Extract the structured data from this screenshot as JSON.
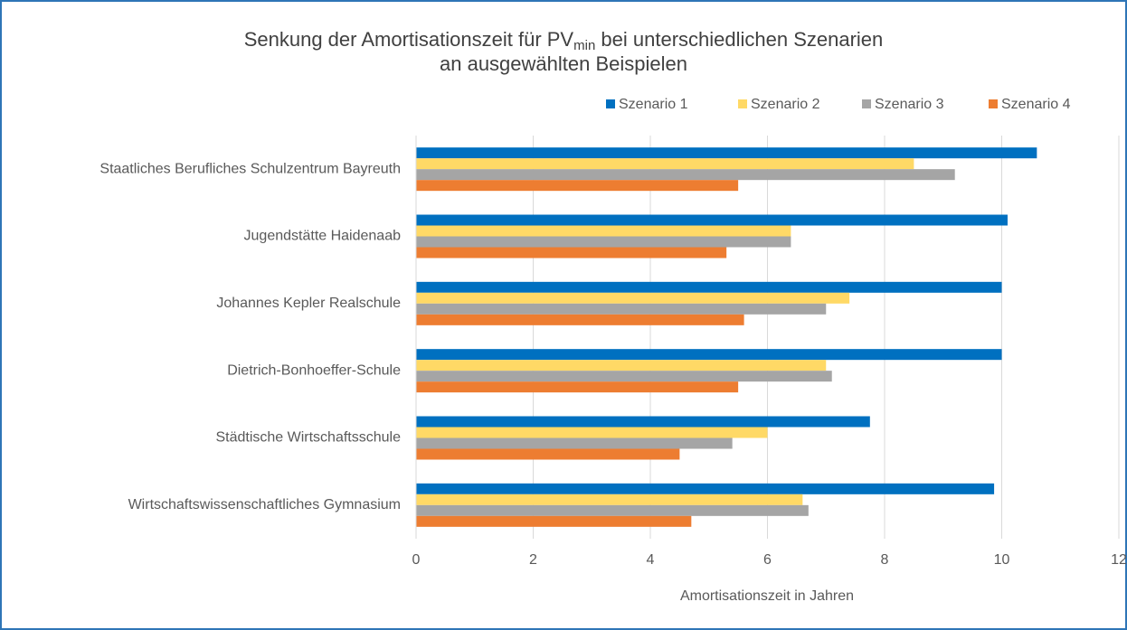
{
  "chart_data": {
    "type": "barh",
    "title": {
      "text": "Senkung der Amortisationszeit für PV",
      "subscript": "min",
      "text_after": " bei unterschiedlichen Szenarien"
    },
    "subtitle": "an ausgewählten Beispielen",
    "categories": [
      "Staatliches Berufliches Schulzentrum Bayreuth",
      "Jugendstätte Haidenaab",
      "Johannes Kepler Realschule",
      "Dietrich-Bonhoeffer-Schule",
      "Städtische Wirtschaftsschule",
      "Wirtschaftswissenschaftliches Gymnasium"
    ],
    "series": [
      {
        "name": "Szenario 1",
        "color": "#0070c0",
        "values": [
          10.6,
          10.1,
          10.0,
          10.0,
          7.75,
          9.87
        ]
      },
      {
        "name": "Szenario 2",
        "color": "#ffd966",
        "values": [
          8.5,
          6.4,
          7.4,
          7.0,
          6.0,
          6.6
        ]
      },
      {
        "name": "Szenario 3",
        "color": "#a5a5a5",
        "values": [
          9.2,
          6.4,
          7.0,
          7.1,
          5.4,
          6.7
        ]
      },
      {
        "name": "Szenario 4",
        "color": "#ed7d31",
        "values": [
          5.5,
          5.3,
          5.6,
          5.5,
          4.5,
          4.7
        ]
      }
    ],
    "xlabel": "Amortisationszeit in Jahren",
    "xlim": [
      0,
      12
    ],
    "xticks": [
      0,
      2,
      4,
      6,
      8,
      10,
      12
    ],
    "grid": true,
    "legend": "top-right"
  }
}
